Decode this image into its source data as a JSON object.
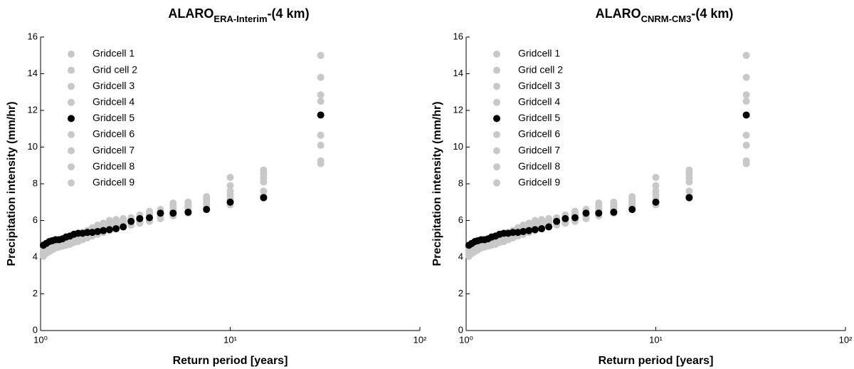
{
  "chart_data": [
    {
      "type": "scatter",
      "title": "ALARO",
      "title_subscript": "ERA-Interim",
      "title_suffix": "-(4 km)",
      "x_label": "Return period [years]",
      "y_label": "Precipitation intensity (mm/hr)",
      "x_log": true,
      "xlim": [
        1,
        100
      ],
      "xticks": [
        {
          "value": 1,
          "label": "10⁰"
        },
        {
          "value": 10,
          "label": "10¹"
        },
        {
          "value": 100,
          "label": "10²"
        }
      ],
      "ylim": [
        0,
        16
      ],
      "yticks": [
        0,
        2,
        4,
        6,
        8,
        10,
        12,
        14,
        16
      ],
      "legend": "upper left",
      "x": [
        30,
        15,
        10,
        7.5,
        6,
        5,
        4.2857,
        3.75,
        3.3333,
        3,
        2.7273,
        2.5,
        2.3077,
        2.1429,
        2,
        1.875,
        1.7647,
        1.6667,
        1.5789,
        1.5,
        1.4286,
        1.3636,
        1.3043,
        1.25,
        1.2,
        1.1538,
        1.1111,
        1.0714,
        1.0345
      ],
      "series": [
        {
          "name": "Gridcell 1",
          "color": "#c8c8c8",
          "values": [
            15.0,
            8.75,
            8.35,
            7.3,
            7.0,
            6.95,
            6.6,
            6.5,
            6.3,
            6.15,
            6.1,
            6.05,
            6.0,
            5.85,
            5.75,
            5.6,
            5.45,
            5.35,
            5.25,
            5.15,
            5.1,
            5.0,
            4.95,
            4.9,
            4.85,
            4.75,
            4.65,
            4.55,
            4.4
          ]
        },
        {
          "name": "Grid cell 2",
          "color": "#c8c8c8",
          "values": [
            13.8,
            8.6,
            7.9,
            7.2,
            6.9,
            6.8,
            6.5,
            6.4,
            6.2,
            6.1,
            6.05,
            6.0,
            5.9,
            5.7,
            5.6,
            5.5,
            5.4,
            5.3,
            5.2,
            5.1,
            5.0,
            4.95,
            4.9,
            4.85,
            4.8,
            4.7,
            4.6,
            4.5,
            4.35
          ]
        },
        {
          "name": "Gridcell 3",
          "color": "#c8c8c8",
          "values": [
            12.85,
            8.5,
            7.6,
            7.1,
            6.8,
            6.7,
            6.45,
            6.3,
            6.15,
            6.05,
            6.0,
            5.9,
            5.8,
            5.65,
            5.5,
            5.4,
            5.3,
            5.2,
            5.1,
            5.05,
            4.95,
            4.9,
            4.85,
            4.8,
            4.75,
            4.65,
            4.55,
            4.45,
            4.3
          ]
        },
        {
          "name": "Gridcell 4",
          "color": "#c8c8c8",
          "values": [
            12.5,
            8.3,
            7.4,
            7.0,
            6.7,
            6.6,
            6.4,
            6.25,
            6.1,
            5.95,
            5.9,
            5.8,
            5.7,
            5.55,
            5.45,
            5.35,
            5.25,
            5.15,
            5.05,
            5.0,
            4.9,
            4.85,
            4.8,
            4.75,
            4.7,
            4.6,
            4.5,
            4.4,
            4.25
          ]
        },
        {
          "name": "Gridcell 5",
          "color": "#000000",
          "values": [
            11.75,
            7.25,
            7.0,
            6.6,
            6.45,
            6.4,
            6.4,
            6.15,
            6.1,
            5.95,
            5.65,
            5.55,
            5.5,
            5.45,
            5.4,
            5.35,
            5.35,
            5.3,
            5.3,
            5.25,
            5.15,
            5.1,
            5.0,
            4.95,
            4.95,
            4.9,
            4.85,
            4.75,
            4.65
          ]
        },
        {
          "name": "Gridcell 6",
          "color": "#c8c8c8",
          "values": [
            10.65,
            8.1,
            7.2,
            6.9,
            6.6,
            6.5,
            6.35,
            6.2,
            6.0,
            5.9,
            5.85,
            5.7,
            5.6,
            5.5,
            5.4,
            5.3,
            5.2,
            5.1,
            5.0,
            4.95,
            4.85,
            4.8,
            4.75,
            4.7,
            4.65,
            4.55,
            4.45,
            4.35,
            4.2
          ]
        },
        {
          "name": "Gridcell 7",
          "color": "#c8c8c8",
          "values": [
            10.1,
            7.6,
            7.0,
            6.8,
            6.5,
            6.4,
            6.3,
            6.1,
            5.95,
            5.85,
            5.75,
            5.65,
            5.55,
            5.45,
            5.35,
            5.25,
            5.15,
            5.05,
            4.95,
            4.9,
            4.8,
            4.75,
            4.7,
            4.65,
            4.6,
            4.5,
            4.4,
            4.3,
            4.15
          ]
        },
        {
          "name": "Gridcell 8",
          "color": "#c8c8c8",
          "values": [
            9.25,
            7.3,
            6.9,
            6.75,
            6.45,
            6.3,
            6.2,
            6.0,
            5.9,
            5.8,
            5.7,
            5.6,
            5.5,
            5.4,
            5.3,
            5.2,
            5.1,
            5.0,
            4.9,
            4.85,
            4.75,
            4.7,
            4.65,
            4.6,
            4.55,
            4.45,
            4.35,
            4.25,
            4.1
          ]
        },
        {
          "name": "Gridcell 9",
          "color": "#c8c8c8",
          "values": [
            9.1,
            7.2,
            6.85,
            6.7,
            6.4,
            6.25,
            6.1,
            5.95,
            5.85,
            5.75,
            5.65,
            5.55,
            5.45,
            5.35,
            5.25,
            5.15,
            5.05,
            4.95,
            4.85,
            4.8,
            4.7,
            4.65,
            4.6,
            4.55,
            4.5,
            4.4,
            4.3,
            4.2,
            4.05
          ]
        }
      ]
    },
    {
      "type": "scatter",
      "title": "ALARO",
      "title_subscript": "CNRM-CM3",
      "title_suffix": "-(4 km)",
      "x_label": "Return period [years]",
      "y_label": "Precipitation intensity (mm/hr)",
      "x_log": true,
      "xlim": [
        1,
        100
      ],
      "xticks": [
        {
          "value": 1,
          "label": "10⁰"
        },
        {
          "value": 10,
          "label": "10¹"
        },
        {
          "value": 100,
          "label": "10²"
        }
      ],
      "ylim": [
        0,
        16
      ],
      "yticks": [
        0,
        2,
        4,
        6,
        8,
        10,
        12,
        14,
        16
      ],
      "legend": "upper left",
      "x": [
        30,
        15,
        10,
        7.5,
        6,
        5,
        4.2857,
        3.75,
        3.3333,
        3,
        2.7273,
        2.5,
        2.3077,
        2.1429,
        2,
        1.875,
        1.7647,
        1.6667,
        1.5789,
        1.5,
        1.4286,
        1.3636,
        1.3043,
        1.25,
        1.2,
        1.1538,
        1.1111,
        1.0714,
        1.0345
      ],
      "series": [
        {
          "name": "Gridcell 1",
          "color": "#c8c8c8",
          "values": [
            15.0,
            8.75,
            8.35,
            7.3,
            7.0,
            6.95,
            6.6,
            6.5,
            6.3,
            6.15,
            6.1,
            6.05,
            6.0,
            5.85,
            5.75,
            5.6,
            5.45,
            5.35,
            5.25,
            5.15,
            5.1,
            5.0,
            4.95,
            4.9,
            4.85,
            4.75,
            4.65,
            4.55,
            4.4
          ]
        },
        {
          "name": "Grid cell 2",
          "color": "#c8c8c8",
          "values": [
            13.8,
            8.6,
            7.9,
            7.2,
            6.9,
            6.8,
            6.5,
            6.4,
            6.2,
            6.1,
            6.05,
            6.0,
            5.9,
            5.7,
            5.6,
            5.5,
            5.4,
            5.3,
            5.2,
            5.1,
            5.0,
            4.95,
            4.9,
            4.85,
            4.8,
            4.7,
            4.6,
            4.5,
            4.35
          ]
        },
        {
          "name": "Gridcell 3",
          "color": "#c8c8c8",
          "values": [
            12.85,
            8.5,
            7.6,
            7.1,
            6.8,
            6.7,
            6.45,
            6.3,
            6.15,
            6.05,
            6.0,
            5.9,
            5.8,
            5.65,
            5.5,
            5.4,
            5.3,
            5.2,
            5.1,
            5.05,
            4.95,
            4.9,
            4.85,
            4.8,
            4.75,
            4.65,
            4.55,
            4.45,
            4.3
          ]
        },
        {
          "name": "Gridcell 4",
          "color": "#c8c8c8",
          "values": [
            12.5,
            8.3,
            7.4,
            7.0,
            6.7,
            6.6,
            6.4,
            6.25,
            6.1,
            5.95,
            5.9,
            5.8,
            5.7,
            5.55,
            5.45,
            5.35,
            5.25,
            5.15,
            5.05,
            5.0,
            4.9,
            4.85,
            4.8,
            4.75,
            4.7,
            4.6,
            4.5,
            4.4,
            4.25
          ]
        },
        {
          "name": "Gridcell 5",
          "color": "#000000",
          "values": [
            11.75,
            7.25,
            7.0,
            6.6,
            6.45,
            6.4,
            6.4,
            6.15,
            6.1,
            5.95,
            5.65,
            5.55,
            5.5,
            5.45,
            5.4,
            5.35,
            5.35,
            5.3,
            5.3,
            5.25,
            5.15,
            5.1,
            5.0,
            4.95,
            4.95,
            4.9,
            4.85,
            4.75,
            4.65
          ]
        },
        {
          "name": "Gridcell 6",
          "color": "#c8c8c8",
          "values": [
            10.65,
            8.1,
            7.2,
            6.9,
            6.6,
            6.5,
            6.35,
            6.2,
            6.0,
            5.9,
            5.85,
            5.7,
            5.6,
            5.5,
            5.4,
            5.3,
            5.2,
            5.1,
            5.0,
            4.95,
            4.85,
            4.8,
            4.75,
            4.7,
            4.65,
            4.55,
            4.45,
            4.35,
            4.2
          ]
        },
        {
          "name": "Gridcell 7",
          "color": "#c8c8c8",
          "values": [
            10.1,
            7.6,
            7.0,
            6.8,
            6.5,
            6.4,
            6.3,
            6.1,
            5.95,
            5.85,
            5.75,
            5.65,
            5.55,
            5.45,
            5.35,
            5.25,
            5.15,
            5.05,
            4.95,
            4.9,
            4.8,
            4.75,
            4.7,
            4.65,
            4.6,
            4.5,
            4.4,
            4.3,
            4.15
          ]
        },
        {
          "name": "Gridcell 8",
          "color": "#c8c8c8",
          "values": [
            9.25,
            7.3,
            6.9,
            6.75,
            6.45,
            6.3,
            6.2,
            6.0,
            5.9,
            5.8,
            5.7,
            5.6,
            5.5,
            5.4,
            5.3,
            5.2,
            5.1,
            5.0,
            4.9,
            4.85,
            4.75,
            4.7,
            4.65,
            4.6,
            4.55,
            4.45,
            4.35,
            4.25,
            4.1
          ]
        },
        {
          "name": "Gridcell 9",
          "color": "#c8c8c8",
          "values": [
            9.1,
            7.2,
            6.85,
            6.7,
            6.4,
            6.25,
            6.1,
            5.95,
            5.85,
            5.75,
            5.65,
            5.55,
            5.45,
            5.35,
            5.25,
            5.15,
            5.05,
            4.95,
            4.85,
            4.8,
            4.7,
            4.65,
            4.6,
            4.55,
            4.5,
            4.4,
            4.3,
            4.2,
            4.05
          ]
        }
      ]
    }
  ]
}
